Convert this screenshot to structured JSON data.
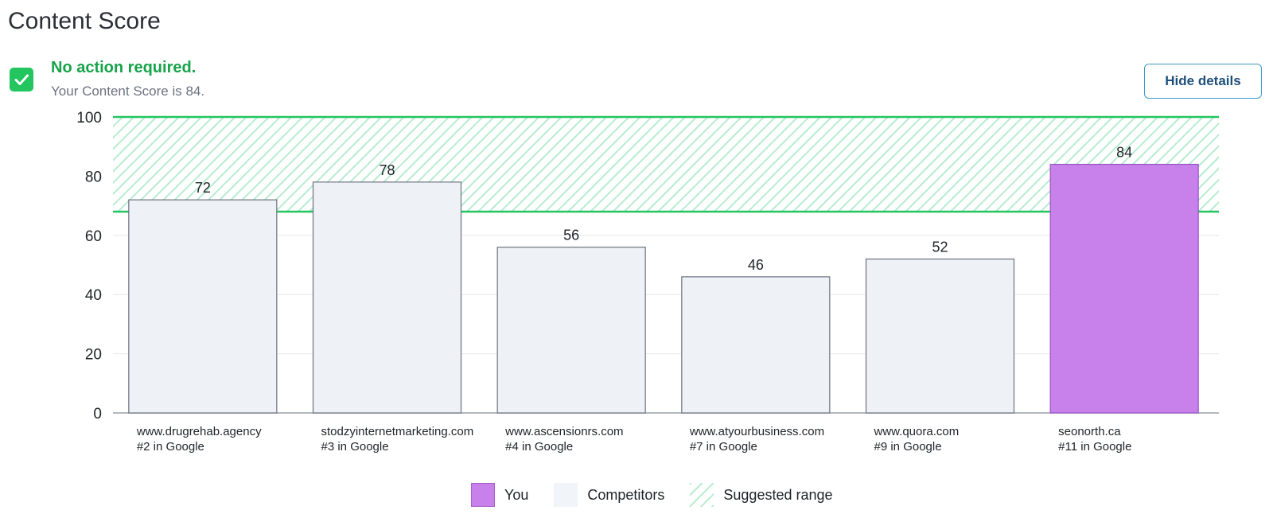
{
  "header": {
    "title": "Content Score"
  },
  "status": {
    "title": "No action required.",
    "subtitle": "Your Content Score is 84."
  },
  "actions": {
    "hide_details_label": "Hide details"
  },
  "colors": {
    "you": "#c880ea",
    "you_stroke": "#9a55c4",
    "competitor": "#eef1f5",
    "competitor_stroke": "#6b7280",
    "suggested_range": "#22c55e",
    "grid": "#e5e7eb"
  },
  "chart_data": {
    "type": "bar",
    "ylim": [
      0,
      100
    ],
    "yticks": [
      0,
      20,
      40,
      60,
      80,
      100
    ],
    "grid": true,
    "suggested_range": [
      68,
      100
    ],
    "categories": [
      {
        "site": "www.drugrehab.agency",
        "rank": "#2 in Google",
        "value": 72,
        "group": "Competitors"
      },
      {
        "site": "stodzyinternetmarketing.com",
        "rank": "#3 in Google",
        "value": 78,
        "group": "Competitors"
      },
      {
        "site": "www.ascensionrs.com",
        "rank": "#4 in Google",
        "value": 56,
        "group": "Competitors"
      },
      {
        "site": "www.atyourbusiness.com",
        "rank": "#7 in Google",
        "value": 46,
        "group": "Competitors"
      },
      {
        "site": "www.quora.com",
        "rank": "#9 in Google",
        "value": 52,
        "group": "Competitors"
      },
      {
        "site": "seonorth.ca",
        "rank": "#11 in Google",
        "value": 84,
        "group": "You"
      }
    ],
    "legend": {
      "position": "bottom-center",
      "items": [
        "You",
        "Competitors",
        "Suggested range"
      ]
    }
  }
}
